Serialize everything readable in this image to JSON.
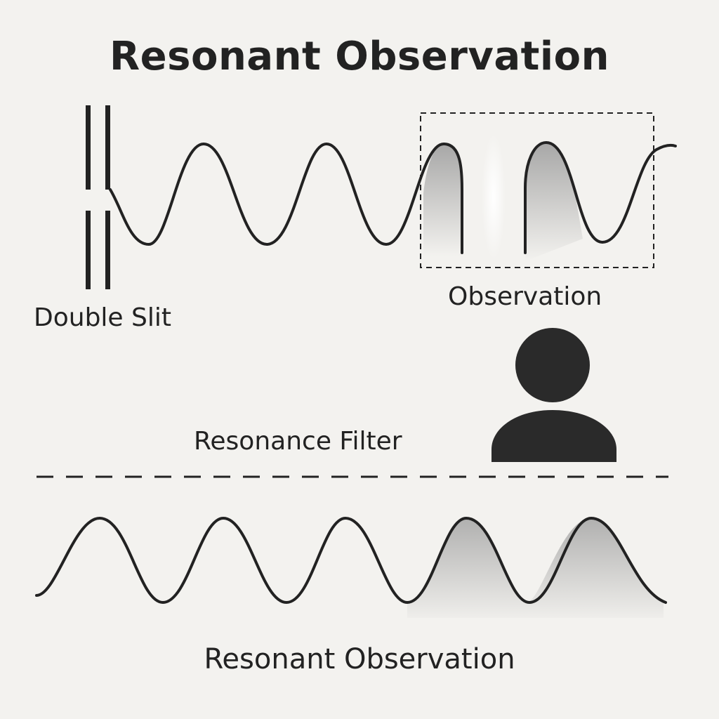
{
  "diagram": {
    "title": "Resonant Observation",
    "labels": {
      "double_slit": "Double Slit",
      "observation": "Observation",
      "resonance_filter": "Resonance Filter",
      "bottom_caption": "Resonant Observation"
    },
    "icons": {
      "observer": "person-icon"
    },
    "colors": {
      "background": "#f3f2ef",
      "ink": "#222222",
      "shade": "#9a9a9a"
    }
  }
}
